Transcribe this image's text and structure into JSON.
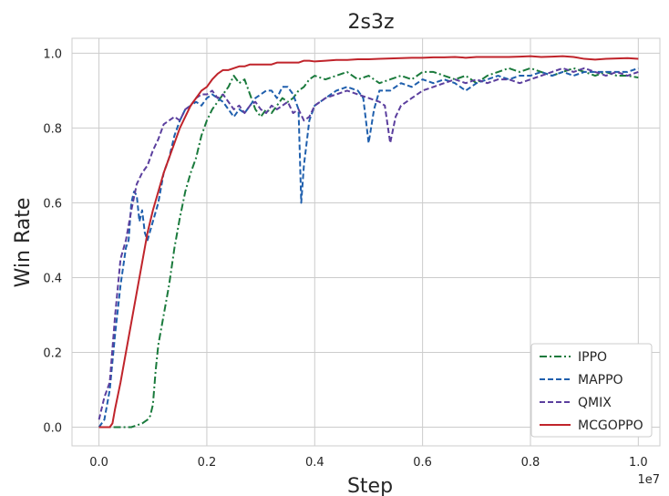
{
  "chart_data": {
    "type": "line",
    "title": "2s3z",
    "xlabel": "Step",
    "ylabel": "Win Rate",
    "x_offset_label": "1e7",
    "xlim": [
      -0.05,
      1.04
    ],
    "ylim": [
      -0.05,
      1.04
    ],
    "xticks": [
      0.0,
      0.2,
      0.4,
      0.6,
      0.8,
      1.0
    ],
    "xtick_labels": [
      "0.0",
      "0.2",
      "0.4",
      "0.6",
      "0.8",
      "1.0"
    ],
    "yticks": [
      0.0,
      0.2,
      0.4,
      0.6,
      0.8,
      1.0
    ],
    "ytick_labels": [
      "0.0",
      "0.2",
      "0.4",
      "0.6",
      "0.8",
      "1.0"
    ],
    "grid": true,
    "legend_position": "bottom-right",
    "series": [
      {
        "name": "IPPO",
        "color": "#1a7a3c",
        "dash": "dashdot",
        "points": [
          [
            0.0,
            0.0
          ],
          [
            0.03,
            0.0
          ],
          [
            0.06,
            0.0
          ],
          [
            0.08,
            0.01
          ],
          [
            0.09,
            0.02
          ],
          [
            0.095,
            0.03
          ],
          [
            0.1,
            0.06
          ],
          [
            0.105,
            0.15
          ],
          [
            0.11,
            0.22
          ],
          [
            0.12,
            0.3
          ],
          [
            0.13,
            0.38
          ],
          [
            0.14,
            0.48
          ],
          [
            0.15,
            0.56
          ],
          [
            0.16,
            0.63
          ],
          [
            0.17,
            0.68
          ],
          [
            0.18,
            0.72
          ],
          [
            0.19,
            0.78
          ],
          [
            0.2,
            0.82
          ],
          [
            0.21,
            0.85
          ],
          [
            0.22,
            0.87
          ],
          [
            0.23,
            0.89
          ],
          [
            0.24,
            0.91
          ],
          [
            0.25,
            0.94
          ],
          [
            0.26,
            0.92
          ],
          [
            0.27,
            0.93
          ],
          [
            0.28,
            0.89
          ],
          [
            0.29,
            0.85
          ],
          [
            0.3,
            0.83
          ],
          [
            0.31,
            0.85
          ],
          [
            0.32,
            0.84
          ],
          [
            0.33,
            0.86
          ],
          [
            0.34,
            0.88
          ],
          [
            0.35,
            0.87
          ],
          [
            0.36,
            0.88
          ],
          [
            0.37,
            0.9
          ],
          [
            0.38,
            0.91
          ],
          [
            0.39,
            0.93
          ],
          [
            0.4,
            0.94
          ],
          [
            0.42,
            0.93
          ],
          [
            0.44,
            0.94
          ],
          [
            0.46,
            0.95
          ],
          [
            0.48,
            0.93
          ],
          [
            0.5,
            0.94
          ],
          [
            0.52,
            0.92
          ],
          [
            0.54,
            0.93
          ],
          [
            0.56,
            0.94
          ],
          [
            0.58,
            0.93
          ],
          [
            0.6,
            0.95
          ],
          [
            0.62,
            0.95
          ],
          [
            0.64,
            0.94
          ],
          [
            0.66,
            0.93
          ],
          [
            0.68,
            0.94
          ],
          [
            0.7,
            0.92
          ],
          [
            0.72,
            0.94
          ],
          [
            0.74,
            0.95
          ],
          [
            0.76,
            0.96
          ],
          [
            0.78,
            0.95
          ],
          [
            0.8,
            0.96
          ],
          [
            0.82,
            0.95
          ],
          [
            0.84,
            0.94
          ],
          [
            0.86,
            0.95
          ],
          [
            0.88,
            0.96
          ],
          [
            0.9,
            0.95
          ],
          [
            0.92,
            0.94
          ],
          [
            0.94,
            0.95
          ],
          [
            0.96,
            0.94
          ],
          [
            0.98,
            0.94
          ],
          [
            1.0,
            0.935
          ]
        ]
      },
      {
        "name": "MAPPO",
        "color": "#1f5fad",
        "dash": "dashed",
        "points": [
          [
            0.0,
            0.0
          ],
          [
            0.01,
            0.02
          ],
          [
            0.02,
            0.1
          ],
          [
            0.03,
            0.25
          ],
          [
            0.04,
            0.38
          ],
          [
            0.05,
            0.48
          ],
          [
            0.055,
            0.5
          ],
          [
            0.06,
            0.6
          ],
          [
            0.065,
            0.63
          ],
          [
            0.07,
            0.62
          ],
          [
            0.075,
            0.55
          ],
          [
            0.08,
            0.58
          ],
          [
            0.085,
            0.52
          ],
          [
            0.09,
            0.5
          ],
          [
            0.1,
            0.55
          ],
          [
            0.11,
            0.6
          ],
          [
            0.12,
            0.68
          ],
          [
            0.13,
            0.72
          ],
          [
            0.14,
            0.78
          ],
          [
            0.15,
            0.82
          ],
          [
            0.16,
            0.85
          ],
          [
            0.17,
            0.86
          ],
          [
            0.18,
            0.87
          ],
          [
            0.19,
            0.86
          ],
          [
            0.2,
            0.88
          ],
          [
            0.21,
            0.89
          ],
          [
            0.22,
            0.88
          ],
          [
            0.23,
            0.87
          ],
          [
            0.24,
            0.85
          ],
          [
            0.25,
            0.83
          ],
          [
            0.26,
            0.85
          ],
          [
            0.27,
            0.84
          ],
          [
            0.28,
            0.86
          ],
          [
            0.29,
            0.88
          ],
          [
            0.3,
            0.89
          ],
          [
            0.31,
            0.9
          ],
          [
            0.32,
            0.9
          ],
          [
            0.33,
            0.88
          ],
          [
            0.34,
            0.91
          ],
          [
            0.35,
            0.91
          ],
          [
            0.36,
            0.89
          ],
          [
            0.37,
            0.85
          ],
          [
            0.375,
            0.6
          ],
          [
            0.38,
            0.7
          ],
          [
            0.39,
            0.82
          ],
          [
            0.4,
            0.86
          ],
          [
            0.42,
            0.88
          ],
          [
            0.44,
            0.9
          ],
          [
            0.46,
            0.91
          ],
          [
            0.48,
            0.9
          ],
          [
            0.49,
            0.88
          ],
          [
            0.5,
            0.76
          ],
          [
            0.51,
            0.85
          ],
          [
            0.52,
            0.9
          ],
          [
            0.54,
            0.9
          ],
          [
            0.56,
            0.92
          ],
          [
            0.58,
            0.91
          ],
          [
            0.6,
            0.93
          ],
          [
            0.62,
            0.92
          ],
          [
            0.64,
            0.93
          ],
          [
            0.66,
            0.92
          ],
          [
            0.68,
            0.9
          ],
          [
            0.7,
            0.92
          ],
          [
            0.72,
            0.93
          ],
          [
            0.74,
            0.94
          ],
          [
            0.76,
            0.93
          ],
          [
            0.78,
            0.94
          ],
          [
            0.8,
            0.94
          ],
          [
            0.82,
            0.95
          ],
          [
            0.84,
            0.94
          ],
          [
            0.86,
            0.95
          ],
          [
            0.88,
            0.94
          ],
          [
            0.9,
            0.95
          ],
          [
            0.92,
            0.95
          ],
          [
            0.94,
            0.95
          ],
          [
            0.96,
            0.95
          ],
          [
            0.98,
            0.95
          ],
          [
            1.0,
            0.96
          ]
        ]
      },
      {
        "name": "QMIX",
        "color": "#5b3f9e",
        "dash": "dashed",
        "points": [
          [
            0.0,
            0.02
          ],
          [
            0.01,
            0.08
          ],
          [
            0.02,
            0.12
          ],
          [
            0.03,
            0.3
          ],
          [
            0.04,
            0.45
          ],
          [
            0.05,
            0.5
          ],
          [
            0.06,
            0.58
          ],
          [
            0.07,
            0.65
          ],
          [
            0.08,
            0.68
          ],
          [
            0.09,
            0.7
          ],
          [
            0.1,
            0.74
          ],
          [
            0.11,
            0.77
          ],
          [
            0.12,
            0.81
          ],
          [
            0.13,
            0.82
          ],
          [
            0.14,
            0.83
          ],
          [
            0.15,
            0.82
          ],
          [
            0.16,
            0.85
          ],
          [
            0.17,
            0.86
          ],
          [
            0.18,
            0.88
          ],
          [
            0.19,
            0.89
          ],
          [
            0.2,
            0.89
          ],
          [
            0.21,
            0.9
          ],
          [
            0.22,
            0.88
          ],
          [
            0.23,
            0.89
          ],
          [
            0.24,
            0.87
          ],
          [
            0.25,
            0.85
          ],
          [
            0.26,
            0.86
          ],
          [
            0.27,
            0.84
          ],
          [
            0.28,
            0.86
          ],
          [
            0.29,
            0.87
          ],
          [
            0.3,
            0.85
          ],
          [
            0.31,
            0.84
          ],
          [
            0.32,
            0.86
          ],
          [
            0.33,
            0.85
          ],
          [
            0.34,
            0.86
          ],
          [
            0.35,
            0.87
          ],
          [
            0.36,
            0.84
          ],
          [
            0.37,
            0.85
          ],
          [
            0.38,
            0.82
          ],
          [
            0.39,
            0.83
          ],
          [
            0.4,
            0.86
          ],
          [
            0.42,
            0.88
          ],
          [
            0.44,
            0.89
          ],
          [
            0.46,
            0.9
          ],
          [
            0.48,
            0.89
          ],
          [
            0.5,
            0.88
          ],
          [
            0.52,
            0.87
          ],
          [
            0.53,
            0.86
          ],
          [
            0.54,
            0.76
          ],
          [
            0.55,
            0.83
          ],
          [
            0.56,
            0.86
          ],
          [
            0.58,
            0.88
          ],
          [
            0.6,
            0.9
          ],
          [
            0.62,
            0.91
          ],
          [
            0.64,
            0.92
          ],
          [
            0.66,
            0.93
          ],
          [
            0.68,
            0.92
          ],
          [
            0.7,
            0.93
          ],
          [
            0.72,
            0.92
          ],
          [
            0.74,
            0.93
          ],
          [
            0.76,
            0.93
          ],
          [
            0.78,
            0.92
          ],
          [
            0.8,
            0.93
          ],
          [
            0.82,
            0.94
          ],
          [
            0.84,
            0.95
          ],
          [
            0.86,
            0.96
          ],
          [
            0.88,
            0.95
          ],
          [
            0.9,
            0.96
          ],
          [
            0.92,
            0.95
          ],
          [
            0.94,
            0.94
          ],
          [
            0.96,
            0.95
          ],
          [
            0.98,
            0.94
          ],
          [
            1.0,
            0.95
          ]
        ]
      },
      {
        "name": "MCGOPPO",
        "color": "#c0242b",
        "dash": "solid",
        "points": [
          [
            0.0,
            0.0
          ],
          [
            0.02,
            0.0
          ],
          [
            0.025,
            0.01
          ],
          [
            0.03,
            0.05
          ],
          [
            0.04,
            0.12
          ],
          [
            0.05,
            0.2
          ],
          [
            0.06,
            0.28
          ],
          [
            0.07,
            0.36
          ],
          [
            0.08,
            0.44
          ],
          [
            0.09,
            0.52
          ],
          [
            0.1,
            0.58
          ],
          [
            0.11,
            0.63
          ],
          [
            0.12,
            0.68
          ],
          [
            0.13,
            0.72
          ],
          [
            0.14,
            0.76
          ],
          [
            0.15,
            0.8
          ],
          [
            0.16,
            0.83
          ],
          [
            0.17,
            0.86
          ],
          [
            0.18,
            0.88
          ],
          [
            0.19,
            0.9
          ],
          [
            0.2,
            0.91
          ],
          [
            0.21,
            0.93
          ],
          [
            0.22,
            0.945
          ],
          [
            0.23,
            0.955
          ],
          [
            0.24,
            0.955
          ],
          [
            0.25,
            0.96
          ],
          [
            0.26,
            0.965
          ],
          [
            0.27,
            0.965
          ],
          [
            0.28,
            0.97
          ],
          [
            0.29,
            0.97
          ],
          [
            0.3,
            0.97
          ],
          [
            0.31,
            0.97
          ],
          [
            0.32,
            0.97
          ],
          [
            0.33,
            0.975
          ],
          [
            0.34,
            0.975
          ],
          [
            0.35,
            0.975
          ],
          [
            0.36,
            0.975
          ],
          [
            0.37,
            0.975
          ],
          [
            0.38,
            0.98
          ],
          [
            0.39,
            0.98
          ],
          [
            0.4,
            0.978
          ],
          [
            0.42,
            0.98
          ],
          [
            0.44,
            0.982
          ],
          [
            0.46,
            0.982
          ],
          [
            0.48,
            0.984
          ],
          [
            0.5,
            0.984
          ],
          [
            0.52,
            0.985
          ],
          [
            0.54,
            0.986
          ],
          [
            0.56,
            0.987
          ],
          [
            0.58,
            0.988
          ],
          [
            0.6,
            0.988
          ],
          [
            0.62,
            0.989
          ],
          [
            0.64,
            0.989
          ],
          [
            0.66,
            0.99
          ],
          [
            0.68,
            0.988
          ],
          [
            0.7,
            0.99
          ],
          [
            0.72,
            0.99
          ],
          [
            0.74,
            0.99
          ],
          [
            0.76,
            0.99
          ],
          [
            0.78,
            0.991
          ],
          [
            0.8,
            0.992
          ],
          [
            0.82,
            0.99
          ],
          [
            0.84,
            0.991
          ],
          [
            0.86,
            0.992
          ],
          [
            0.88,
            0.99
          ],
          [
            0.9,
            0.985
          ],
          [
            0.92,
            0.983
          ],
          [
            0.94,
            0.985
          ],
          [
            0.96,
            0.986
          ],
          [
            0.98,
            0.987
          ],
          [
            1.0,
            0.985
          ]
        ]
      }
    ]
  }
}
